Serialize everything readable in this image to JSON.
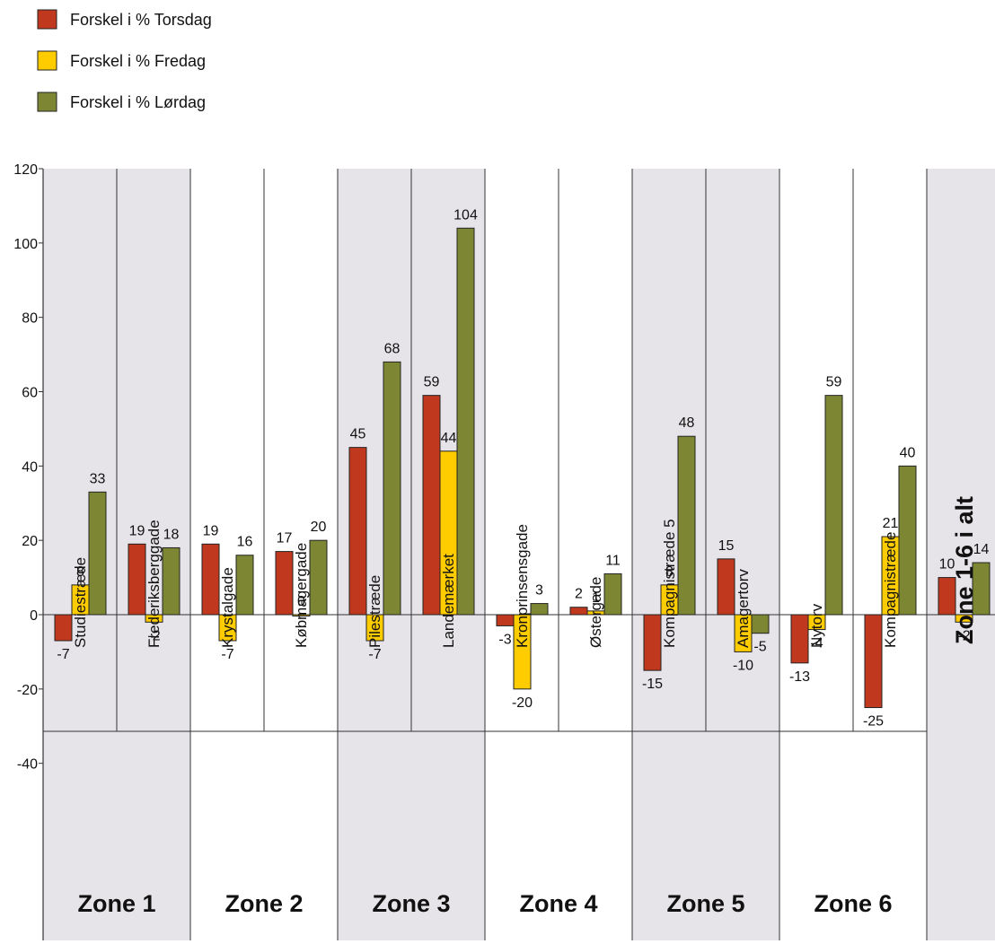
{
  "chart_data": {
    "type": "bar",
    "title": "",
    "xlabel": "",
    "ylabel": "",
    "ylim": [
      -40,
      120
    ],
    "yticks": [
      120,
      100,
      80,
      60,
      40,
      20,
      0,
      -20,
      -40
    ],
    "categories": [
      "Studiestræde",
      "Frederiksberggade",
      "Krystalgade",
      "Købmagergade",
      "Pilestræde",
      "Landemærket",
      "Kronprinsensgade",
      "Østergade",
      "Kompagnistræde 5",
      "Amagertorv",
      "Nytorv",
      "Kompagnistræde",
      "Zone 1-6 i alt"
    ],
    "series": [
      {
        "name": "Forskel i % Torsdag",
        "color": "#c0391e",
        "values": [
          -7,
          19,
          19,
          17,
          45,
          59,
          -3,
          2,
          -15,
          15,
          -13,
          -25,
          10
        ]
      },
      {
        "name": "Forskel i % Fredag",
        "color": "#ffcc00",
        "values": [
          8,
          -2,
          -7,
          0,
          -7,
          44,
          -20,
          1,
          8,
          -10,
          -4,
          21,
          -2
        ]
      },
      {
        "name": "Forskel i % Lørdag",
        "color": "#7d8632",
        "values": [
          33,
          18,
          16,
          20,
          68,
          104,
          3,
          11,
          48,
          -5,
          59,
          40,
          14
        ]
      }
    ],
    "zones": [
      {
        "label": "Zone 1",
        "span": 2,
        "shaded": true
      },
      {
        "label": "Zone 2",
        "span": 2,
        "shaded": false
      },
      {
        "label": "Zone 3",
        "span": 2,
        "shaded": true
      },
      {
        "label": "Zone 4",
        "span": 2,
        "shaded": false
      },
      {
        "label": "Zone 5",
        "span": 2,
        "shaded": true
      },
      {
        "label": "Zone 6",
        "span": 2,
        "shaded": false
      }
    ],
    "total_column": {
      "label": "Zone 1-6 i alt",
      "shaded": true
    },
    "legend_position": "top-left",
    "grid": false,
    "colors": {
      "shade": "#e6e4e8",
      "line": "#333333"
    }
  }
}
